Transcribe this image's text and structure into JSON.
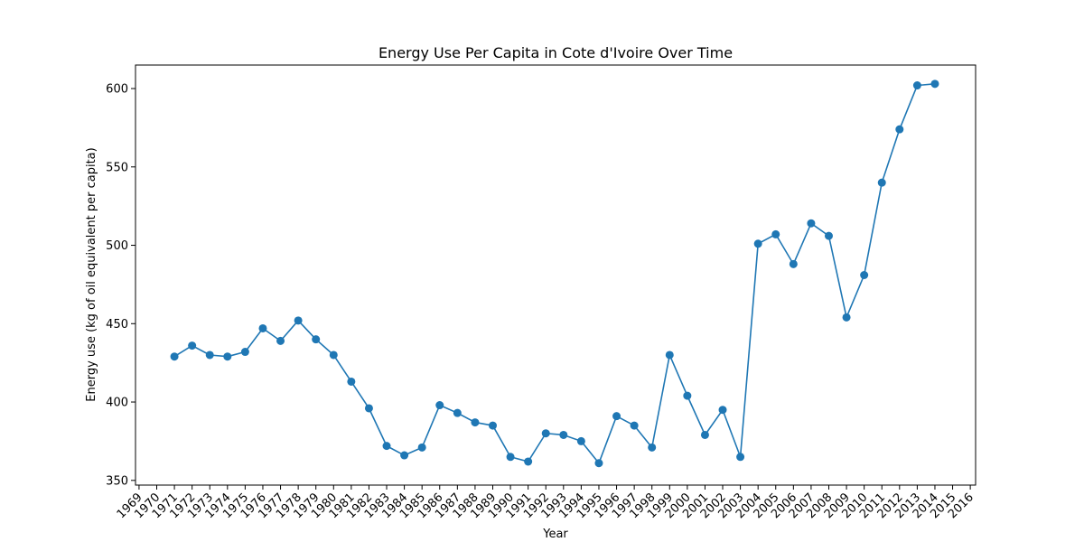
{
  "chart_data": {
    "type": "line",
    "title": "Energy Use Per Capita in Cote d'Ivoire Over Time",
    "xlabel": "Year",
    "ylabel": "Energy use (kg of oil equivalent per capita)",
    "x_ticks": [
      "1969",
      "1970",
      "1971",
      "1972",
      "1973",
      "1974",
      "1975",
      "1976",
      "1977",
      "1978",
      "1979",
      "1980",
      "1981",
      "1982",
      "1983",
      "1984",
      "1985",
      "1986",
      "1987",
      "1988",
      "1989",
      "1990",
      "1991",
      "1992",
      "1993",
      "1994",
      "1995",
      "1996",
      "1997",
      "1998",
      "1999",
      "2000",
      "2001",
      "2002",
      "2003",
      "2004",
      "2005",
      "2006",
      "2007",
      "2008",
      "2009",
      "2010",
      "2011",
      "2012",
      "2013",
      "2014",
      "2015",
      "2016"
    ],
    "y_ticks": [
      350,
      400,
      450,
      500,
      550,
      600
    ],
    "xlim": [
      1968.8,
      2016.3
    ],
    "ylim": [
      347,
      615
    ],
    "grid": false,
    "color": "#1f77b4",
    "series": [
      {
        "x": [
          1971,
          1972,
          1973,
          1974,
          1975,
          1976,
          1977,
          1978,
          1979,
          1980,
          1981,
          1982,
          1983,
          1984,
          1985,
          1986,
          1987,
          1988,
          1989,
          1990,
          1991,
          1992,
          1993,
          1994,
          1995,
          1996,
          1997,
          1998,
          1999,
          2000,
          2001,
          2002,
          2003,
          2004,
          2005,
          2006,
          2007,
          2008,
          2009,
          2010,
          2011,
          2012,
          2013,
          2014
        ],
        "values": [
          429,
          436,
          430,
          429,
          432,
          447,
          439,
          452,
          440,
          430,
          413,
          396,
          372,
          366,
          371,
          398,
          393,
          387,
          385,
          365,
          362,
          380,
          379,
          375,
          361,
          391,
          385,
          371,
          430,
          404,
          379,
          395,
          365,
          501,
          507,
          488,
          514,
          506,
          454,
          481,
          540,
          574,
          602,
          603
        ]
      }
    ]
  }
}
